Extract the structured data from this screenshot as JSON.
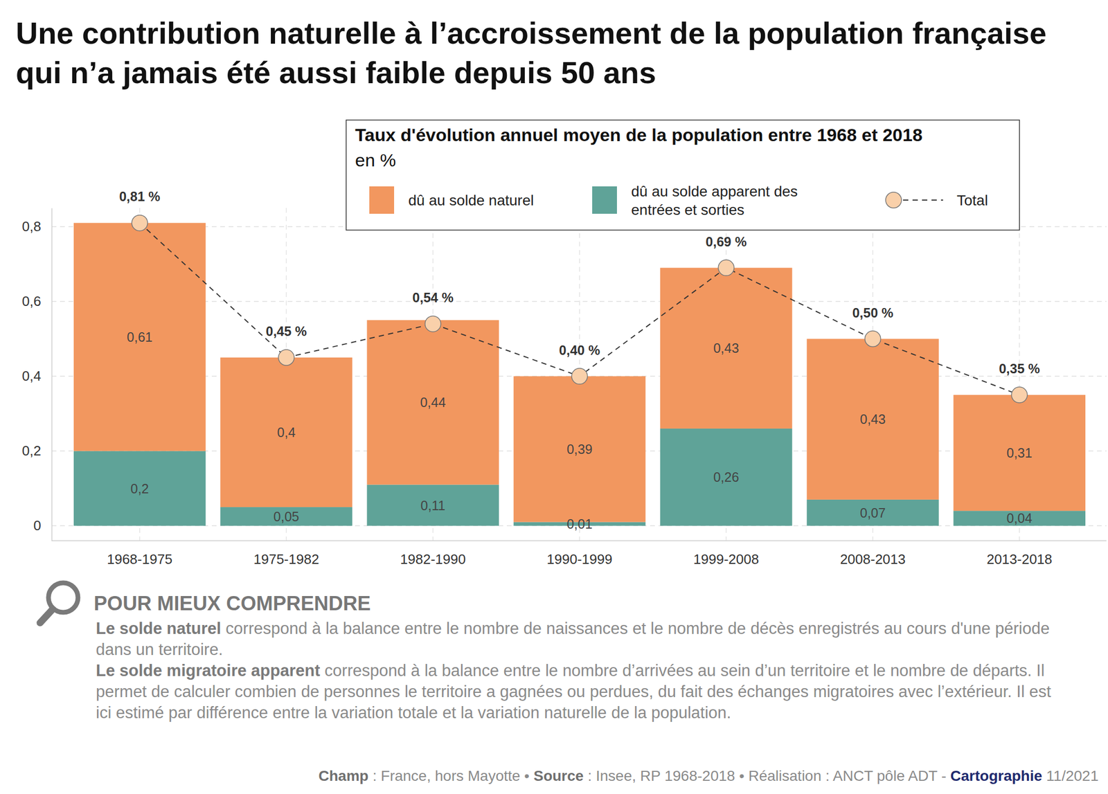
{
  "chart_data": {
    "type": "bar",
    "stacked": true,
    "data_labels": true,
    "grid": true,
    "legend": "top-right",
    "title": "Une contribution naturelle à l’accroissement de la population française qui n’a jamais été aussi faible depuis 50 ans",
    "legend_title": "Taux d'évolution annuel moyen de la population entre 1968 et 2018",
    "legend_subtitle": "en %",
    "categories": [
      "1968-1975",
      "1975-1982",
      "1982-1990",
      "1990-1999",
      "1999-2008",
      "2008-2013",
      "2013-2018"
    ],
    "ylim": [
      -0.04,
      0.85
    ],
    "yticks": [
      0,
      {
        "value": 0.2,
        "label": "0,2"
      },
      {
        "value": 0.4,
        "label": "0,4"
      },
      {
        "value": 0.6,
        "label": "0,6"
      },
      {
        "value": 0.8,
        "label": "0,8"
      }
    ],
    "series": [
      {
        "name": "dû au solde naturel",
        "type": "bar",
        "color": "#f2975f",
        "values": [
          0.61,
          0.4,
          0.44,
          0.39,
          0.43,
          0.43,
          0.31
        ],
        "value_labels": [
          "0,61",
          "0,4",
          "0,44",
          "0,39",
          "0,43",
          "0,43",
          "0,31"
        ]
      },
      {
        "name": "dû au solde apparent des entrées et sorties",
        "type": "bar",
        "color": "#5fa398",
        "values": [
          0.2,
          0.05,
          0.11,
          0.01,
          0.26,
          0.07,
          0.04
        ],
        "value_labels": [
          "0,2",
          "0,05",
          "0,11",
          "0,01",
          "0,26",
          "0,07",
          "0,04"
        ]
      },
      {
        "name": "Total",
        "type": "line",
        "color": "#f9d0aa",
        "marker": "circle",
        "line_style": "dashed",
        "values": [
          0.81,
          0.45,
          0.54,
          0.4,
          0.69,
          0.5,
          0.35
        ],
        "value_labels": [
          "0,81 %",
          "0,45 %",
          "0,54 %",
          "0,40 %",
          "0,69 %",
          "0,50 %",
          "0,35 %"
        ]
      }
    ],
    "notes": {
      "heading": "POUR MIEUX COMPRENDRE",
      "items": [
        {
          "term": "Le solde naturel",
          "text": " correspond à la balance entre le nombre de naissances et le nombre de décès enregistrés au cours d'une période dans un territoire."
        },
        {
          "term": "Le solde migratoire apparent",
          "text": " correspond à la balance entre le nombre d’arrivées au sein d’un territoire et le nombre de départs. Il permet de calculer combien de personnes le territoire a gagnées ou perdues, du fait des échanges migratoires avec l’extérieur. Il est ici estimé par différence entre la variation totale et la variation naturelle de la population."
        }
      ]
    },
    "footer": [
      {
        "label": "Champ",
        "text": " : France, hors Mayotte • "
      },
      {
        "label": "Source",
        "text": " : Insee, RP 1968-2018 • "
      },
      {
        "text": "Réalisation : ANCT pôle ADT - "
      },
      {
        "label": "Cartographie",
        "text": " 11/2021"
      }
    ]
  }
}
